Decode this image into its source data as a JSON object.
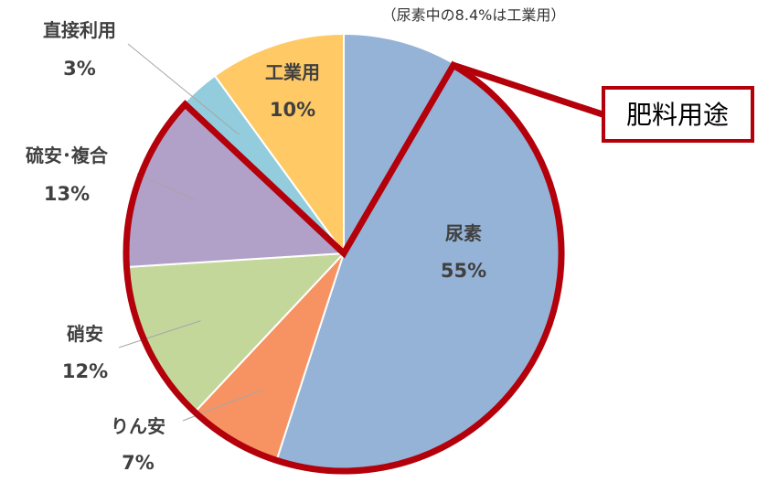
{
  "chart_data": {
    "type": "pie",
    "note": "（尿素中の8.4%は工業用）",
    "callout": "肥料用途",
    "slices": [
      {
        "label": "尿素",
        "value": 55,
        "percent": "55%",
        "color": "#95B3D7"
      },
      {
        "label": "りん安",
        "value": 7,
        "percent": "7%",
        "color": "#F79363"
      },
      {
        "label": "硝安",
        "value": 12,
        "percent": "12%",
        "color": "#C4D79B"
      },
      {
        "label": "硫安･複合",
        "value": 13,
        "percent": "13%",
        "color": "#B1A0C7"
      },
      {
        "label": "直接利用",
        "value": 3,
        "percent": "3%",
        "color": "#93CDDD"
      },
      {
        "label": "工業用",
        "value": 10,
        "percent": "10%",
        "color": "#FFC966"
      }
    ],
    "highlight_color": "#B3000A"
  }
}
